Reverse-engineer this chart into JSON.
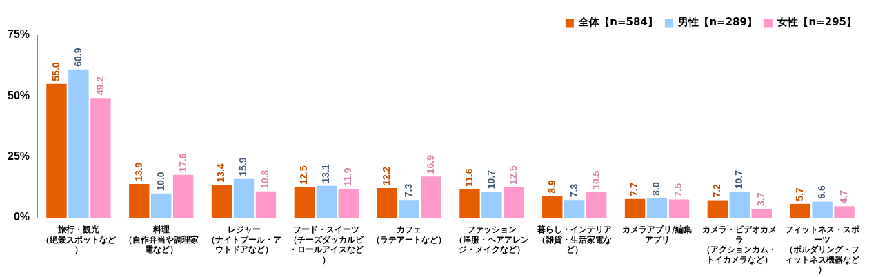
{
  "chart_data": {
    "type": "bar",
    "categories": [
      "旅行・観光（絶景スポットなど）",
      "料理（自作弁当や調理家電など）",
      "レジャー（ナイトプール・アウトドアなど）",
      "フード・スイーツ（チーズダッカルビ・ロールアイスなど）",
      "カフェ（ラテアートなど）",
      "ファッション（洋服・ヘアアレンジ・メイクなど）",
      "暮らし・インテリア（雑貨・生活家電など）",
      "カメラアプリ/編集アプリ",
      "カメラ・ビデオカメラ（アクションカム・トイカメラなど）",
      "フィットネス・スポーツ（ボルダリング・フィットネス機器など）"
    ],
    "series": [
      {
        "name": "全体【n=584】",
        "color": "#e65c00",
        "values": [
          55.0,
          13.9,
          13.4,
          12.5,
          12.2,
          11.6,
          8.9,
          7.7,
          7.2,
          5.7
        ],
        "value_labels": [
          "55.0",
          "13.9",
          "13.4",
          "12.5",
          "12.2",
          "11.6",
          "8.9",
          "7.7",
          "7.2",
          "5.7"
        ]
      },
      {
        "name": "男性【n=289】",
        "color": "#99ccff",
        "values": [
          60.9,
          10.0,
          15.9,
          13.1,
          7.3,
          10.7,
          7.3,
          8.0,
          10.7,
          6.6
        ],
        "value_labels": [
          "60.9",
          "10.0",
          "15.9",
          "13.1",
          "7.3",
          "10.7",
          "7.3",
          "8.0",
          "10.7",
          "6.6"
        ]
      },
      {
        "name": "女性【n=295】",
        "color": "#ff99cc",
        "values": [
          49.2,
          17.6,
          10.8,
          11.9,
          16.9,
          12.5,
          10.5,
          7.5,
          3.7,
          4.7
        ],
        "value_labels": [
          "49.2",
          "17.6",
          "10.8",
          "11.9",
          "16.9",
          "12.5",
          "10.5",
          "7.5",
          "3.7",
          "4.7"
        ]
      }
    ],
    "ylim": [
      0,
      75
    ],
    "yticks": [
      {
        "value": 0,
        "label": "0%"
      },
      {
        "value": 25,
        "label": "25%"
      },
      {
        "value": 50,
        "label": "50%"
      },
      {
        "value": 75,
        "label": "75%"
      }
    ],
    "legend": "top right",
    "grid": false
  }
}
